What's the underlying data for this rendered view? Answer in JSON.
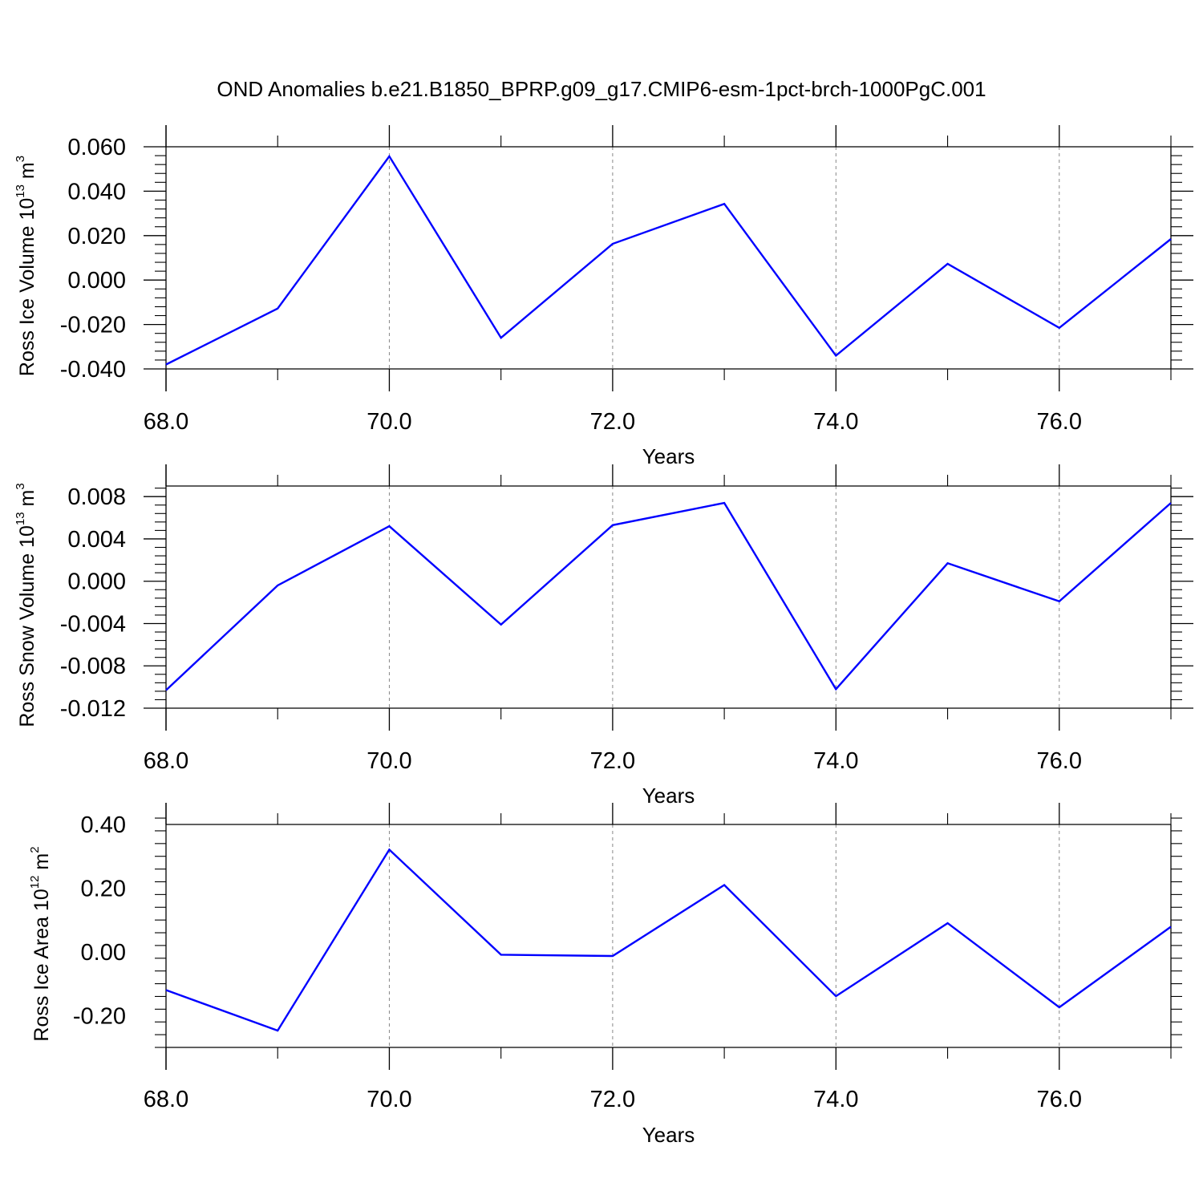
{
  "title": "OND Anomalies b.e21.B1850_BPRP.g09_g17.CMIP6-esm-1pct-brch-1000PgC.001",
  "colors": {
    "line": "#0000ff",
    "axis": "#000000",
    "grid": "#888888"
  },
  "chart_data": [
    {
      "type": "line",
      "ylabel": {
        "text": "Ross Ice Volume 10",
        "exp": "13",
        "unit": " m",
        "unit_exp": "3"
      },
      "xlabel": "Years",
      "x": [
        68,
        69,
        70,
        71,
        72,
        73,
        74,
        75,
        76,
        77
      ],
      "values": [
        -0.038,
        -0.0128,
        0.0557,
        -0.026,
        0.0163,
        0.0343,
        -0.034,
        0.0073,
        -0.0215,
        0.0185
      ],
      "xlim": [
        68,
        77
      ],
      "ylim": [
        -0.04,
        0.06
      ],
      "xticks": [
        68,
        70,
        72,
        74,
        76
      ],
      "xtick_labels": [
        "68.0",
        "70.0",
        "72.0",
        "74.0",
        "76.0"
      ],
      "yticks": [
        -0.04,
        -0.02,
        0,
        0.02,
        0.04,
        0.06
      ],
      "ytick_labels": [
        "-0.040",
        "-0.020",
        "0.000",
        "0.020",
        "0.040",
        "0.060"
      ],
      "grid": "vertical dashed at major x ticks"
    },
    {
      "type": "line",
      "ylabel": {
        "text": "Ross Snow Volume 10",
        "exp": "13",
        "unit": " m",
        "unit_exp": "3"
      },
      "xlabel": "Years",
      "x": [
        68,
        69,
        70,
        71,
        72,
        73,
        74,
        75,
        76,
        77
      ],
      "values": [
        -0.0103,
        -0.0004,
        0.0052,
        -0.0041,
        0.0053,
        0.0074,
        -0.0102,
        0.0017,
        -0.0019,
        0.0074
      ],
      "xlim": [
        68,
        77
      ],
      "ylim": [
        -0.012,
        0.009
      ],
      "xticks": [
        68,
        70,
        72,
        74,
        76
      ],
      "xtick_labels": [
        "68.0",
        "70.0",
        "72.0",
        "74.0",
        "76.0"
      ],
      "yticks": [
        -0.012,
        -0.008,
        -0.004,
        0,
        0.004,
        0.008
      ],
      "ytick_labels": [
        "-0.012",
        "-0.008",
        "-0.004",
        "0.000",
        "0.004",
        "0.008"
      ],
      "grid": "vertical dashed at major x ticks"
    },
    {
      "type": "line",
      "ylabel": {
        "text": "Ross Ice Area 10",
        "exp": "12",
        "unit": " m",
        "unit_exp": "2"
      },
      "xlabel": "Years",
      "x": [
        68,
        69,
        70,
        71,
        72,
        73,
        74,
        75,
        76,
        77
      ],
      "values": [
        -0.12,
        -0.247,
        0.321,
        -0.009,
        -0.013,
        0.21,
        -0.139,
        0.09,
        -0.174,
        0.079
      ],
      "xlim": [
        68,
        77
      ],
      "ylim": [
        -0.3,
        0.4
      ],
      "xticks": [
        68,
        70,
        72,
        74,
        76
      ],
      "xtick_labels": [
        "68.0",
        "70.0",
        "72.0",
        "74.0",
        "76.0"
      ],
      "yticks": [
        -0.2,
        0,
        0.2,
        0.4
      ],
      "ytick_labels": [
        "-0.20",
        "0.00",
        "0.20",
        "0.40"
      ],
      "grid": "vertical dashed at major x ticks"
    }
  ]
}
